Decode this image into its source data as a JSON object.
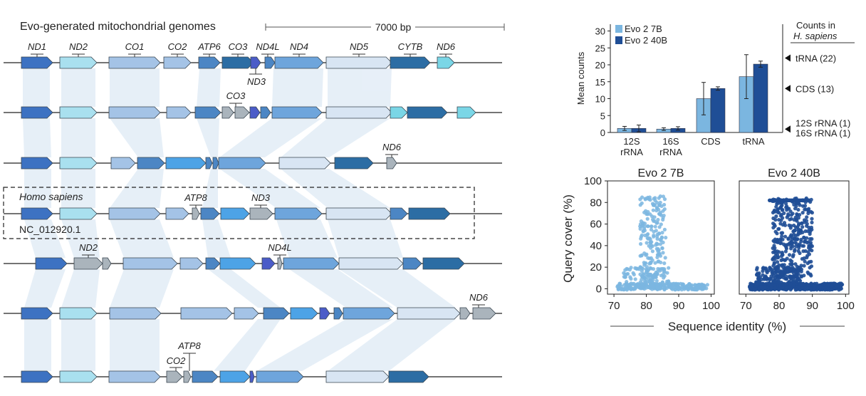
{
  "genomes": {
    "title": "Evo-generated mitochondrial genomes",
    "scale_label": "7000 bp",
    "reference_species": "Homo sapiens",
    "reference_accession": "NC_012920.1",
    "gene_labels": {
      "row1": [
        "ND1",
        "ND2",
        "CO1",
        "CO2",
        "ATP6",
        "CO3",
        "ND4L",
        "ND4",
        "ND5",
        "CYTB",
        "ND6"
      ],
      "row1_below": "ND3",
      "row2": "CO3",
      "row3": "ND6",
      "row4": [
        "ATP8",
        "ND3"
      ],
      "row5": [
        "ND2",
        "ND4L"
      ],
      "row6": "ND6",
      "row7": [
        "ATP8",
        "CO2"
      ]
    }
  },
  "colors": {
    "evo7b": "#7bb6e0",
    "evo40b": "#1f4e96",
    "grey_gene": "#aab4bc",
    "band": "#c9dcef"
  },
  "chart_data": [
    {
      "type": "bar",
      "title": "",
      "ylabel": "Mean counts",
      "categories": [
        "12S\nrRNA",
        "16S\nrRNA",
        "CDS",
        "tRNA"
      ],
      "series": [
        {
          "name": "Evo 2 7B",
          "values": [
            1.2,
            1.0,
            10.0,
            16.5
          ],
          "errors": [
            0.6,
            0.4,
            4.8,
            6.5
          ]
        },
        {
          "name": "Evo 2 40B",
          "values": [
            1.2,
            1.2,
            13.0,
            20.2
          ],
          "errors": [
            1.0,
            0.5,
            0.5,
            0.9
          ]
        }
      ],
      "ylim": [
        0,
        32
      ],
      "yticks": [
        0,
        5,
        10,
        15,
        20,
        25,
        30
      ],
      "reference_title": [
        "Counts in",
        "H. sapiens"
      ],
      "reference_markers": [
        {
          "label": "tRNA (22)",
          "value": 22
        },
        {
          "label": "CDS (13)",
          "value": 13
        },
        {
          "label": "12S rRNA (1)",
          "value": 1
        },
        {
          "label": "16S rRNA (1)",
          "value": 1
        }
      ]
    },
    {
      "type": "scatter",
      "panels": [
        {
          "title": "Evo 2 7B",
          "color": "#7bb6e0"
        },
        {
          "title": "Evo 2 40B",
          "color": "#1f4e96"
        }
      ],
      "xlabel": "Sequence identity (%)",
      "ylabel": "Query cover (%)",
      "xlim": [
        68,
        101
      ],
      "ylim": [
        -5,
        100
      ],
      "xticks": [
        70,
        80,
        90,
        100
      ],
      "yticks": [
        0,
        20,
        40,
        60,
        80,
        100
      ]
    }
  ]
}
